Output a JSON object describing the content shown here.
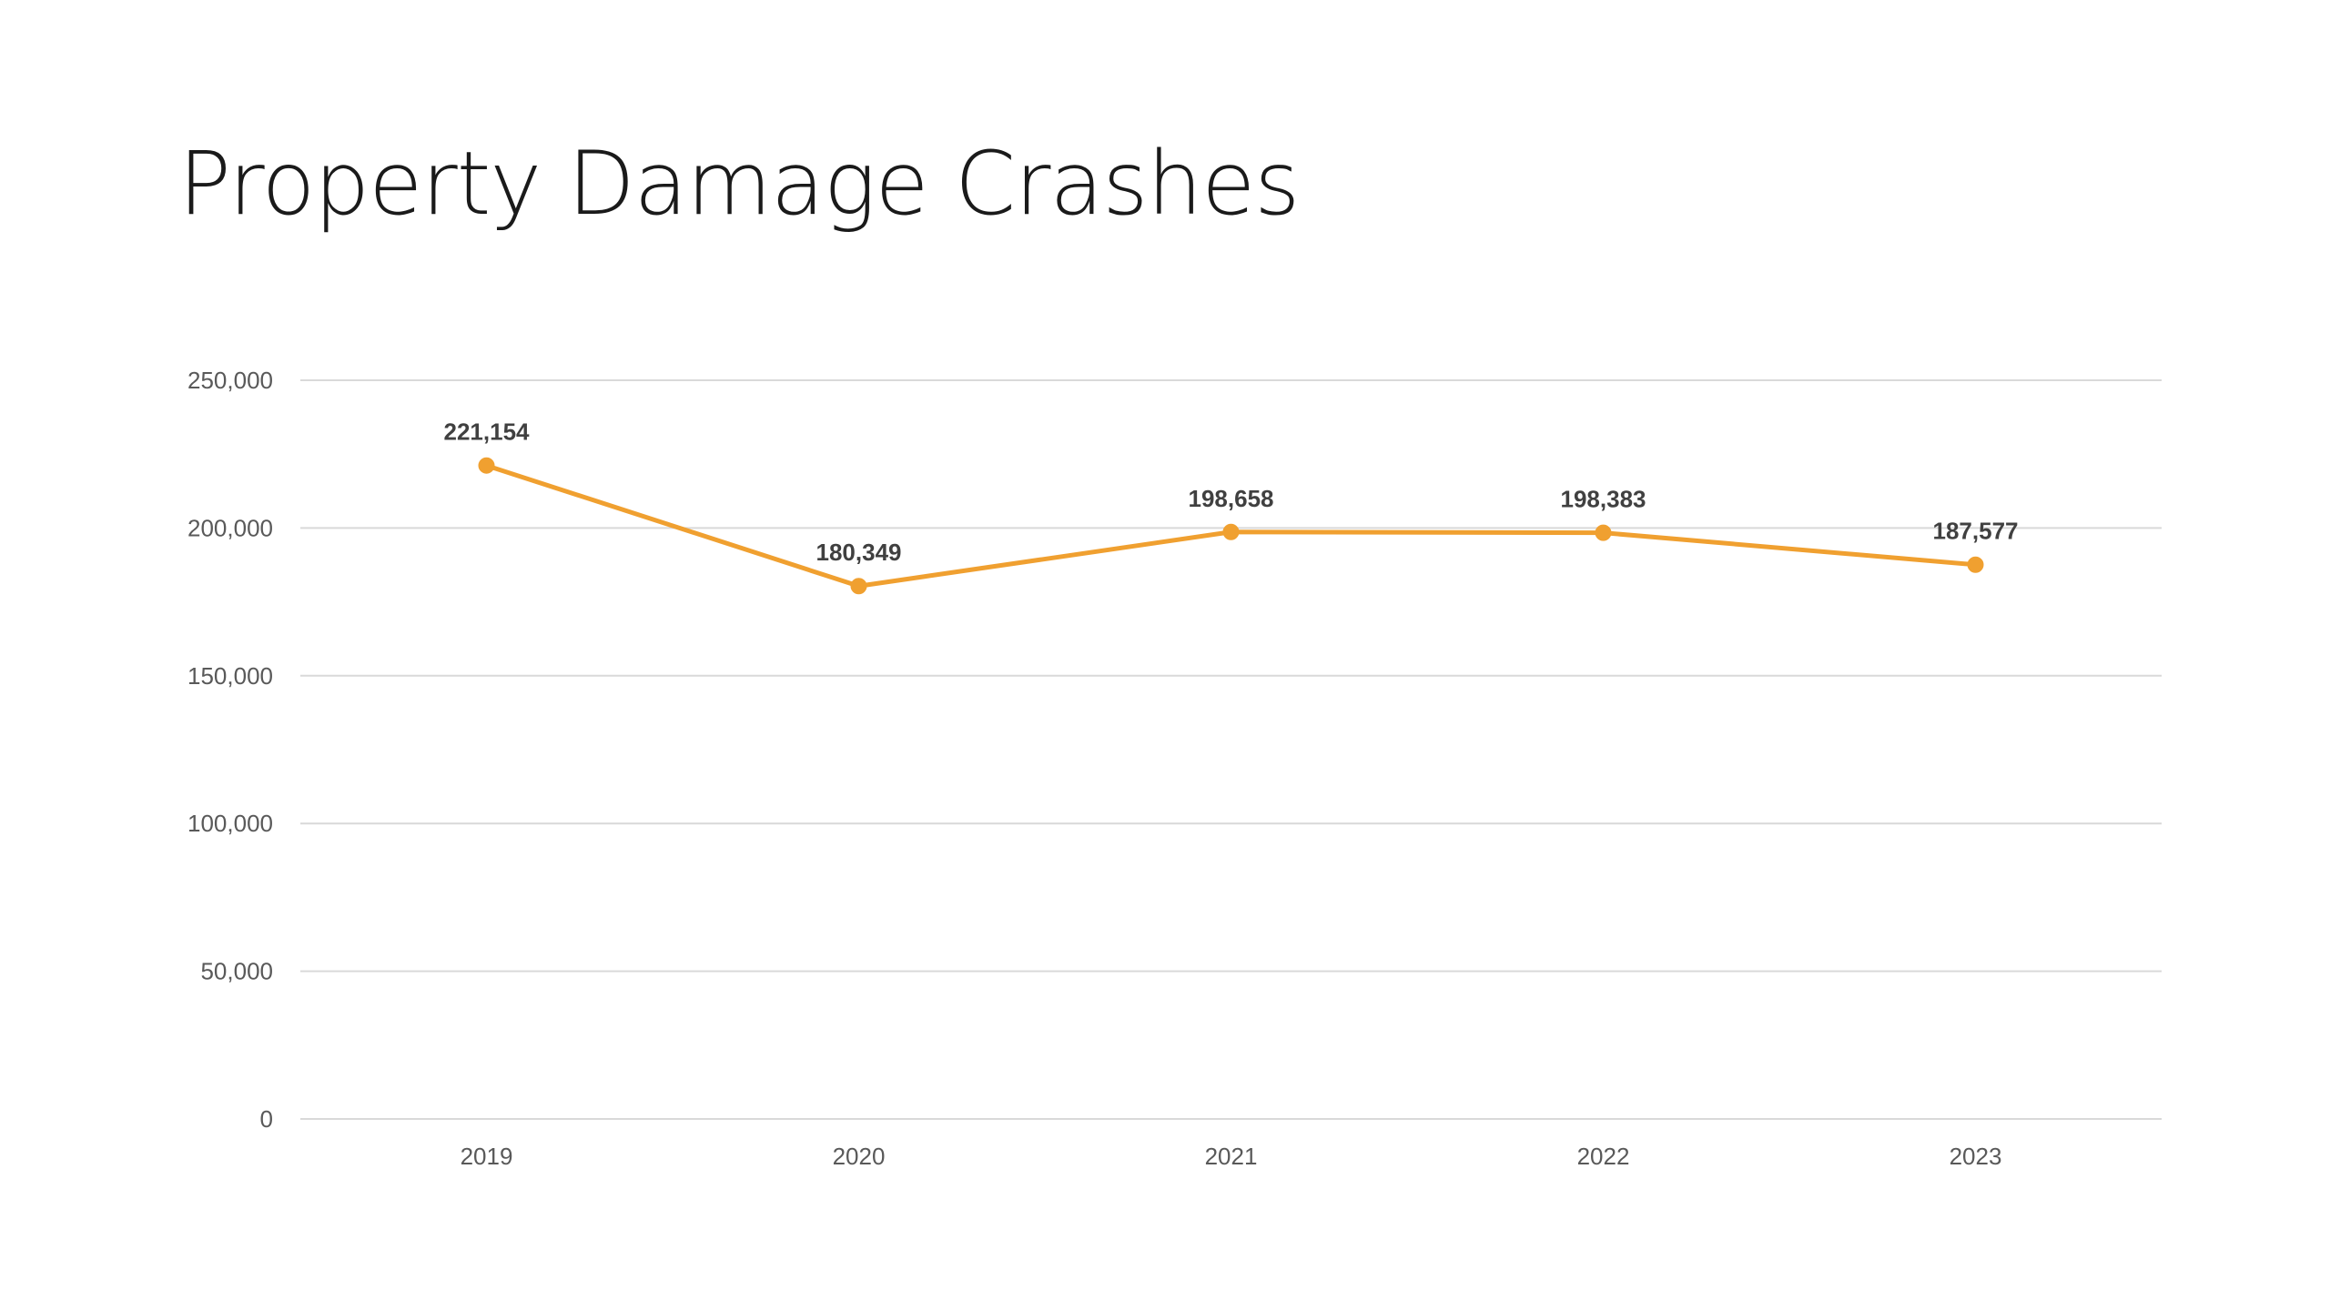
{
  "slide": {
    "title": "Property Damage Crashes"
  },
  "chart_data": {
    "type": "line",
    "title": "Property Damage Crashes",
    "categories": [
      "2019",
      "2020",
      "2021",
      "2022",
      "2023"
    ],
    "series": [
      {
        "values": [
          221154,
          180349,
          198658,
          198383,
          187577
        ],
        "color": "#F0A030"
      }
    ],
    "data_labels": [
      "221,154",
      "180,349",
      "198,658",
      "198,383",
      "187,577"
    ],
    "y_ticks": [
      0,
      50000,
      100000,
      150000,
      200000,
      250000
    ],
    "y_tick_labels": [
      "0",
      "50,000",
      "100,000",
      "150,000",
      "200,000",
      "250,000"
    ],
    "ylim": [
      0,
      250000
    ],
    "grid": true,
    "legend": "none",
    "markers": true
  }
}
